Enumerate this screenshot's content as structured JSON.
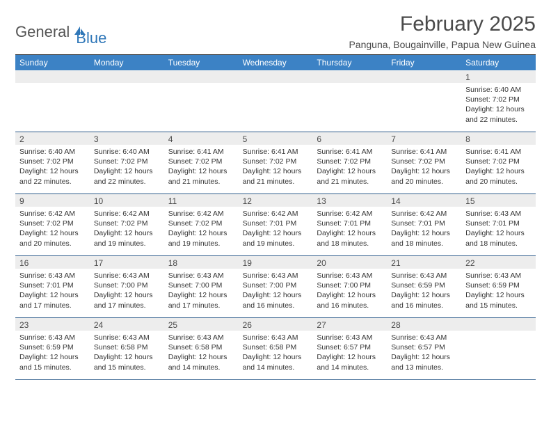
{
  "logo": {
    "part1": "General",
    "part2": "Blue"
  },
  "title": "February 2025",
  "location": "Panguna, Bougainville, Papua New Guinea",
  "colors": {
    "header_bg": "#3c82c5",
    "header_text": "#ffffff",
    "daynum_bg": "#ededed",
    "week_divider": "#2b5a8a",
    "text": "#333333",
    "logo_gray": "#555555",
    "logo_blue": "#2f77b8"
  },
  "typography": {
    "title_fontsize": 30,
    "location_fontsize": 14,
    "dayheader_fontsize": 12,
    "cell_fontsize": 10.5
  },
  "day_names": [
    "Sunday",
    "Monday",
    "Tuesday",
    "Wednesday",
    "Thursday",
    "Friday",
    "Saturday"
  ],
  "weeks": [
    [
      {
        "n": "",
        "sunrise": "",
        "sunset": "",
        "daylight1": "",
        "daylight2": ""
      },
      {
        "n": "",
        "sunrise": "",
        "sunset": "",
        "daylight1": "",
        "daylight2": ""
      },
      {
        "n": "",
        "sunrise": "",
        "sunset": "",
        "daylight1": "",
        "daylight2": ""
      },
      {
        "n": "",
        "sunrise": "",
        "sunset": "",
        "daylight1": "",
        "daylight2": ""
      },
      {
        "n": "",
        "sunrise": "",
        "sunset": "",
        "daylight1": "",
        "daylight2": ""
      },
      {
        "n": "",
        "sunrise": "",
        "sunset": "",
        "daylight1": "",
        "daylight2": ""
      },
      {
        "n": "1",
        "sunrise": "Sunrise: 6:40 AM",
        "sunset": "Sunset: 7:02 PM",
        "daylight1": "Daylight: 12 hours",
        "daylight2": "and 22 minutes."
      }
    ],
    [
      {
        "n": "2",
        "sunrise": "Sunrise: 6:40 AM",
        "sunset": "Sunset: 7:02 PM",
        "daylight1": "Daylight: 12 hours",
        "daylight2": "and 22 minutes."
      },
      {
        "n": "3",
        "sunrise": "Sunrise: 6:40 AM",
        "sunset": "Sunset: 7:02 PM",
        "daylight1": "Daylight: 12 hours",
        "daylight2": "and 22 minutes."
      },
      {
        "n": "4",
        "sunrise": "Sunrise: 6:41 AM",
        "sunset": "Sunset: 7:02 PM",
        "daylight1": "Daylight: 12 hours",
        "daylight2": "and 21 minutes."
      },
      {
        "n": "5",
        "sunrise": "Sunrise: 6:41 AM",
        "sunset": "Sunset: 7:02 PM",
        "daylight1": "Daylight: 12 hours",
        "daylight2": "and 21 minutes."
      },
      {
        "n": "6",
        "sunrise": "Sunrise: 6:41 AM",
        "sunset": "Sunset: 7:02 PM",
        "daylight1": "Daylight: 12 hours",
        "daylight2": "and 21 minutes."
      },
      {
        "n": "7",
        "sunrise": "Sunrise: 6:41 AM",
        "sunset": "Sunset: 7:02 PM",
        "daylight1": "Daylight: 12 hours",
        "daylight2": "and 20 minutes."
      },
      {
        "n": "8",
        "sunrise": "Sunrise: 6:41 AM",
        "sunset": "Sunset: 7:02 PM",
        "daylight1": "Daylight: 12 hours",
        "daylight2": "and 20 minutes."
      }
    ],
    [
      {
        "n": "9",
        "sunrise": "Sunrise: 6:42 AM",
        "sunset": "Sunset: 7:02 PM",
        "daylight1": "Daylight: 12 hours",
        "daylight2": "and 20 minutes."
      },
      {
        "n": "10",
        "sunrise": "Sunrise: 6:42 AM",
        "sunset": "Sunset: 7:02 PM",
        "daylight1": "Daylight: 12 hours",
        "daylight2": "and 19 minutes."
      },
      {
        "n": "11",
        "sunrise": "Sunrise: 6:42 AM",
        "sunset": "Sunset: 7:02 PM",
        "daylight1": "Daylight: 12 hours",
        "daylight2": "and 19 minutes."
      },
      {
        "n": "12",
        "sunrise": "Sunrise: 6:42 AM",
        "sunset": "Sunset: 7:01 PM",
        "daylight1": "Daylight: 12 hours",
        "daylight2": "and 19 minutes."
      },
      {
        "n": "13",
        "sunrise": "Sunrise: 6:42 AM",
        "sunset": "Sunset: 7:01 PM",
        "daylight1": "Daylight: 12 hours",
        "daylight2": "and 18 minutes."
      },
      {
        "n": "14",
        "sunrise": "Sunrise: 6:42 AM",
        "sunset": "Sunset: 7:01 PM",
        "daylight1": "Daylight: 12 hours",
        "daylight2": "and 18 minutes."
      },
      {
        "n": "15",
        "sunrise": "Sunrise: 6:43 AM",
        "sunset": "Sunset: 7:01 PM",
        "daylight1": "Daylight: 12 hours",
        "daylight2": "and 18 minutes."
      }
    ],
    [
      {
        "n": "16",
        "sunrise": "Sunrise: 6:43 AM",
        "sunset": "Sunset: 7:01 PM",
        "daylight1": "Daylight: 12 hours",
        "daylight2": "and 17 minutes."
      },
      {
        "n": "17",
        "sunrise": "Sunrise: 6:43 AM",
        "sunset": "Sunset: 7:00 PM",
        "daylight1": "Daylight: 12 hours",
        "daylight2": "and 17 minutes."
      },
      {
        "n": "18",
        "sunrise": "Sunrise: 6:43 AM",
        "sunset": "Sunset: 7:00 PM",
        "daylight1": "Daylight: 12 hours",
        "daylight2": "and 17 minutes."
      },
      {
        "n": "19",
        "sunrise": "Sunrise: 6:43 AM",
        "sunset": "Sunset: 7:00 PM",
        "daylight1": "Daylight: 12 hours",
        "daylight2": "and 16 minutes."
      },
      {
        "n": "20",
        "sunrise": "Sunrise: 6:43 AM",
        "sunset": "Sunset: 7:00 PM",
        "daylight1": "Daylight: 12 hours",
        "daylight2": "and 16 minutes."
      },
      {
        "n": "21",
        "sunrise": "Sunrise: 6:43 AM",
        "sunset": "Sunset: 6:59 PM",
        "daylight1": "Daylight: 12 hours",
        "daylight2": "and 16 minutes."
      },
      {
        "n": "22",
        "sunrise": "Sunrise: 6:43 AM",
        "sunset": "Sunset: 6:59 PM",
        "daylight1": "Daylight: 12 hours",
        "daylight2": "and 15 minutes."
      }
    ],
    [
      {
        "n": "23",
        "sunrise": "Sunrise: 6:43 AM",
        "sunset": "Sunset: 6:59 PM",
        "daylight1": "Daylight: 12 hours",
        "daylight2": "and 15 minutes."
      },
      {
        "n": "24",
        "sunrise": "Sunrise: 6:43 AM",
        "sunset": "Sunset: 6:58 PM",
        "daylight1": "Daylight: 12 hours",
        "daylight2": "and 15 minutes."
      },
      {
        "n": "25",
        "sunrise": "Sunrise: 6:43 AM",
        "sunset": "Sunset: 6:58 PM",
        "daylight1": "Daylight: 12 hours",
        "daylight2": "and 14 minutes."
      },
      {
        "n": "26",
        "sunrise": "Sunrise: 6:43 AM",
        "sunset": "Sunset: 6:58 PM",
        "daylight1": "Daylight: 12 hours",
        "daylight2": "and 14 minutes."
      },
      {
        "n": "27",
        "sunrise": "Sunrise: 6:43 AM",
        "sunset": "Sunset: 6:57 PM",
        "daylight1": "Daylight: 12 hours",
        "daylight2": "and 14 minutes."
      },
      {
        "n": "28",
        "sunrise": "Sunrise: 6:43 AM",
        "sunset": "Sunset: 6:57 PM",
        "daylight1": "Daylight: 12 hours",
        "daylight2": "and 13 minutes."
      },
      {
        "n": "",
        "sunrise": "",
        "sunset": "",
        "daylight1": "",
        "daylight2": ""
      }
    ]
  ]
}
